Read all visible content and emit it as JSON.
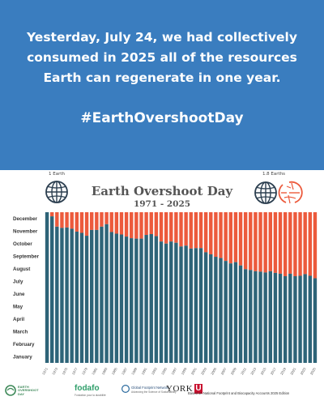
{
  "banner": {
    "headline": "Yesterday, July 24, we had collectively consumed in 2025 all of the resources Earth can regenerate in one year.",
    "hashtag": "#EarthOvershootDay",
    "background": "#3a7dbf"
  },
  "globes": {
    "left_label": "1 Earth",
    "right_label": "1.8 Earths",
    "left_icon": "globe-icon",
    "right_icon": "globe-icon-multiple"
  },
  "chart_data": {
    "type": "bar",
    "title": "Earth Overshoot Day",
    "subtitle": "1971 - 2025",
    "colors": {
      "consumed": "#2e6478",
      "overshoot": "#ec5a3c"
    },
    "y_axis": {
      "labels": [
        "January",
        "February",
        "March",
        "April",
        "May",
        "June",
        "July",
        "August",
        "September",
        "October",
        "November",
        "December"
      ],
      "range_days": [
        0,
        365
      ]
    },
    "x_tick_labels": [
      "1971",
      "1973",
      "1975",
      "1977",
      "1979",
      "1981",
      "1983",
      "1985",
      "1987",
      "1989",
      "1991",
      "1993",
      "1995",
      "1997",
      "1999",
      "2001",
      "2003",
      "2005",
      "2007",
      "2009",
      "2011",
      "2013",
      "2015",
      "2017",
      "2019",
      "2021",
      "2023",
      "2025"
    ],
    "years": [
      1971,
      1972,
      1973,
      1974,
      1975,
      1976,
      1977,
      1978,
      1979,
      1980,
      1981,
      1982,
      1983,
      1984,
      1985,
      1986,
      1987,
      1988,
      1989,
      1990,
      1991,
      1992,
      1993,
      1994,
      1995,
      1996,
      1997,
      1998,
      1999,
      2000,
      2001,
      2002,
      2003,
      2004,
      2005,
      2006,
      2007,
      2008,
      2009,
      2010,
      2011,
      2012,
      2013,
      2014,
      2015,
      2016,
      2017,
      2018,
      2019,
      2020,
      2021,
      2022,
      2023,
      2024,
      2025
    ],
    "overshoot_day_of_year": [
      365,
      355,
      330,
      327,
      328,
      325,
      318,
      315,
      308,
      322,
      322,
      330,
      336,
      317,
      313,
      311,
      306,
      302,
      301,
      301,
      310,
      312,
      307,
      294,
      289,
      294,
      291,
      282,
      284,
      277,
      278,
      278,
      268,
      263,
      257,
      254,
      247,
      241,
      244,
      236,
      227,
      225,
      222,
      221,
      219,
      222,
      218,
      216,
      210,
      216,
      210,
      211,
      215,
      211,
      205
    ]
  },
  "footer": {
    "logos": [
      "EARTH OVERSHOOT DAY",
      "fodafo",
      "Global Footprint Network",
      "YORK"
    ],
    "logo_sub": {
      "fodafo": "Fondation pour la durabilité",
      "gfn": "Advancing the Science of Sustainability"
    },
    "york_mark": "U",
    "footnote": "Based on National Footprint and Biocapacity Accounts 2025 Edition"
  }
}
